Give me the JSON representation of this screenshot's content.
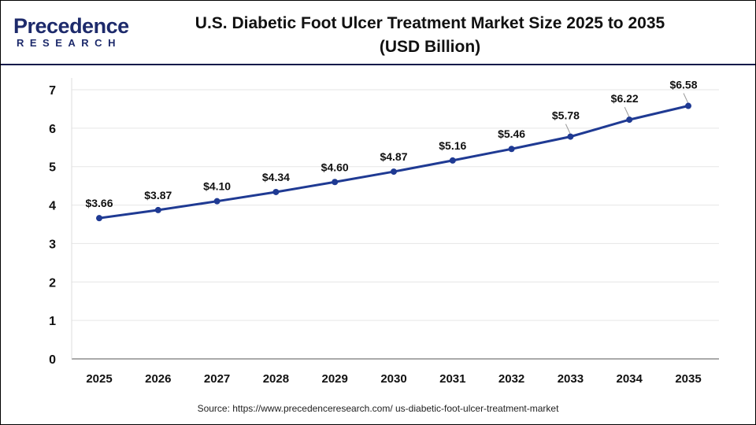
{
  "logo": {
    "text_line1": "Precedence",
    "text_line2": "RESEARCH"
  },
  "header": {
    "title_line1": "U.S. Diabetic Foot Ulcer Treatment Market Size 2025 to 2035",
    "title_line2": "(USD Billion)"
  },
  "source": "Source: https://www.precedenceresearch.com/ us-diabetic-foot-ulcer-treatment-market",
  "chart_data": {
    "type": "line",
    "title": "U.S. Diabetic Foot Ulcer Treatment Market Size 2025 to 2035 (USD Billion)",
    "categories": [
      "2025",
      "2026",
      "2027",
      "2028",
      "2029",
      "2030",
      "2031",
      "2032",
      "2033",
      "2034",
      "2035"
    ],
    "values": [
      3.66,
      3.87,
      4.1,
      4.34,
      4.6,
      4.87,
      5.16,
      5.46,
      5.78,
      6.22,
      6.58
    ],
    "data_labels": [
      "$3.66",
      "$3.87",
      "$4.10",
      "$4.34",
      "$4.60",
      "$4.87",
      "$5.16",
      "$5.46",
      "$5.78",
      "$6.22",
      "$6.58"
    ],
    "yticks": [
      "0",
      "1",
      "2",
      "3",
      "4",
      "5",
      "6",
      "7"
    ],
    "ylim": [
      0,
      7
    ],
    "grid": "horizontal",
    "line_color": "#1f3a93"
  }
}
